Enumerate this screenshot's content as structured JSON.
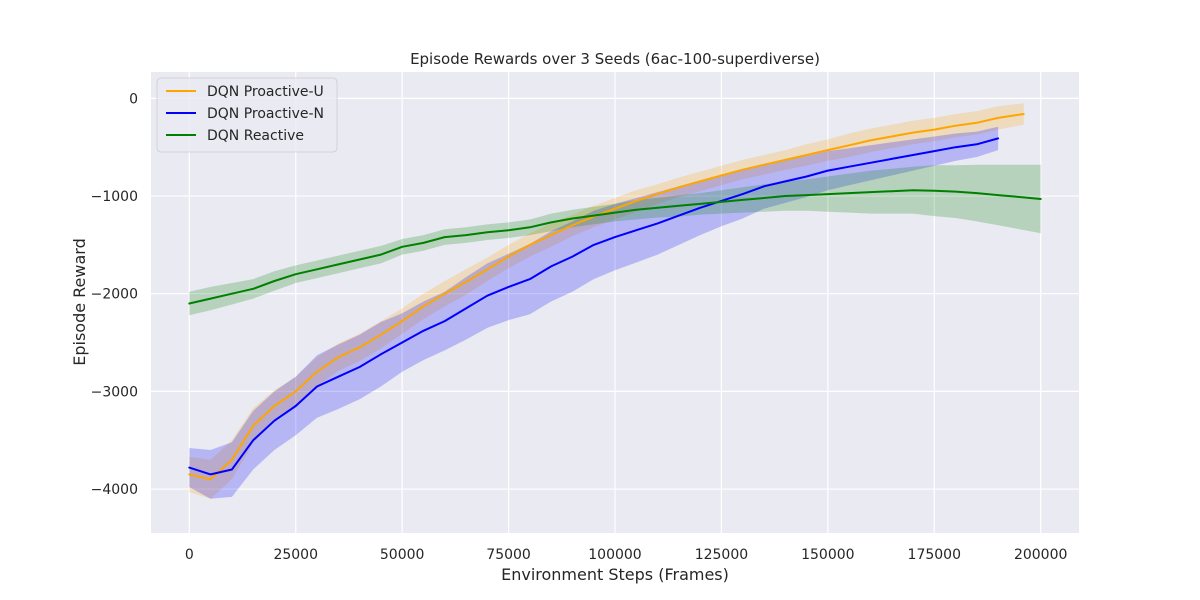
{
  "chart_data": {
    "type": "line",
    "title": "Episode Rewards over 3 Seeds (6ac-100-superdiverse)",
    "xlabel": "Environment Steps (Frames)",
    "ylabel": "Episode Reward",
    "xlim": [
      -9000,
      209000
    ],
    "ylim": [
      -4450,
      270
    ],
    "xticks": [
      0,
      25000,
      50000,
      75000,
      100000,
      125000,
      150000,
      175000,
      200000
    ],
    "xtick_labels": [
      "0",
      "25000",
      "50000",
      "75000",
      "100000",
      "125000",
      "150000",
      "175000",
      "200000"
    ],
    "yticks": [
      0,
      -1000,
      -2000,
      -3000,
      -4000
    ],
    "ytick_labels": [
      "0",
      "−1000",
      "−2000",
      "−3000",
      "−4000"
    ],
    "grid": true,
    "legend_position": "upper-left",
    "series": [
      {
        "name": "DQN Proactive-U",
        "color": "#ffa500",
        "band_color": "#ffa500",
        "x": [
          0,
          5000,
          10000,
          15000,
          20000,
          25000,
          30000,
          35000,
          40000,
          45000,
          50000,
          55000,
          60000,
          65000,
          70000,
          75000,
          80000,
          85000,
          90000,
          95000,
          100000,
          105000,
          110000,
          115000,
          120000,
          125000,
          130000,
          135000,
          140000,
          145000,
          150000,
          155000,
          160000,
          165000,
          170000,
          175000,
          180000,
          185000,
          190000,
          196000
        ],
        "y": [
          -3850,
          -3900,
          -3700,
          -3350,
          -3150,
          -3000,
          -2800,
          -2650,
          -2550,
          -2420,
          -2280,
          -2130,
          -2000,
          -1880,
          -1750,
          -1620,
          -1500,
          -1400,
          -1300,
          -1210,
          -1130,
          -1050,
          -980,
          -910,
          -850,
          -790,
          -730,
          -680,
          -630,
          -580,
          -530,
          -480,
          -430,
          -390,
          -350,
          -320,
          -280,
          -250,
          -200,
          -160
        ],
        "band": [
          180,
          200,
          200,
          180,
          160,
          150,
          150,
          140,
          140,
          140,
          130,
          130,
          130,
          130,
          120,
          120,
          120,
          120,
          110,
          110,
          110,
          110,
          100,
          100,
          100,
          100,
          100,
          100,
          100,
          110,
          110,
          120,
          120,
          120,
          120,
          120,
          120,
          120,
          120,
          110
        ]
      },
      {
        "name": "DQN Proactive-N",
        "color": "#0000ff",
        "band_color": "#0000ff",
        "x": [
          0,
          5000,
          10000,
          15000,
          20000,
          25000,
          30000,
          35000,
          40000,
          45000,
          50000,
          55000,
          60000,
          65000,
          70000,
          75000,
          80000,
          85000,
          90000,
          95000,
          100000,
          105000,
          110000,
          115000,
          120000,
          125000,
          130000,
          135000,
          140000,
          145000,
          150000,
          155000,
          160000,
          165000,
          170000,
          175000,
          180000,
          185000,
          190000
        ],
        "y": [
          -3780,
          -3850,
          -3800,
          -3500,
          -3300,
          -3150,
          -2950,
          -2850,
          -2750,
          -2620,
          -2500,
          -2380,
          -2280,
          -2150,
          -2020,
          -1930,
          -1850,
          -1720,
          -1620,
          -1500,
          -1420,
          -1350,
          -1280,
          -1200,
          -1120,
          -1050,
          -980,
          -900,
          -850,
          -800,
          -740,
          -700,
          -660,
          -620,
          -580,
          -540,
          -500,
          -470,
          -410
        ],
        "band": [
          200,
          250,
          280,
          300,
          300,
          300,
          320,
          330,
          330,
          330,
          300,
          300,
          300,
          320,
          330,
          340,
          360,
          360,
          360,
          350,
          340,
          330,
          320,
          300,
          280,
          260,
          250,
          230,
          220,
          210,
          200,
          190,
          180,
          170,
          160,
          150,
          140,
          130,
          120
        ]
      },
      {
        "name": "DQN Reactive",
        "color": "#008000",
        "band_color": "#008000",
        "x": [
          0,
          5000,
          10000,
          15000,
          20000,
          25000,
          30000,
          35000,
          40000,
          45000,
          50000,
          55000,
          60000,
          65000,
          70000,
          75000,
          80000,
          85000,
          90000,
          95000,
          100000,
          105000,
          110000,
          115000,
          120000,
          125000,
          130000,
          135000,
          140000,
          145000,
          150000,
          155000,
          160000,
          165000,
          170000,
          175000,
          180000,
          185000,
          190000,
          195000,
          200000
        ],
        "y": [
          -2100,
          -2050,
          -2000,
          -1950,
          -1870,
          -1800,
          -1750,
          -1700,
          -1650,
          -1600,
          -1520,
          -1480,
          -1420,
          -1400,
          -1370,
          -1350,
          -1320,
          -1270,
          -1230,
          -1200,
          -1170,
          -1140,
          -1120,
          -1100,
          -1080,
          -1060,
          -1040,
          -1020,
          -1000,
          -990,
          -980,
          -970,
          -960,
          -950,
          -940,
          -945,
          -955,
          -970,
          -990,
          -1010,
          -1030
        ],
        "band": [
          120,
          120,
          110,
          100,
          100,
          90,
          90,
          90,
          90,
          90,
          80,
          80,
          80,
          80,
          80,
          80,
          80,
          90,
          90,
          90,
          90,
          100,
          100,
          110,
          110,
          120,
          130,
          140,
          150,
          160,
          180,
          200,
          220,
          230,
          240,
          260,
          270,
          290,
          310,
          330,
          350
        ]
      }
    ]
  }
}
